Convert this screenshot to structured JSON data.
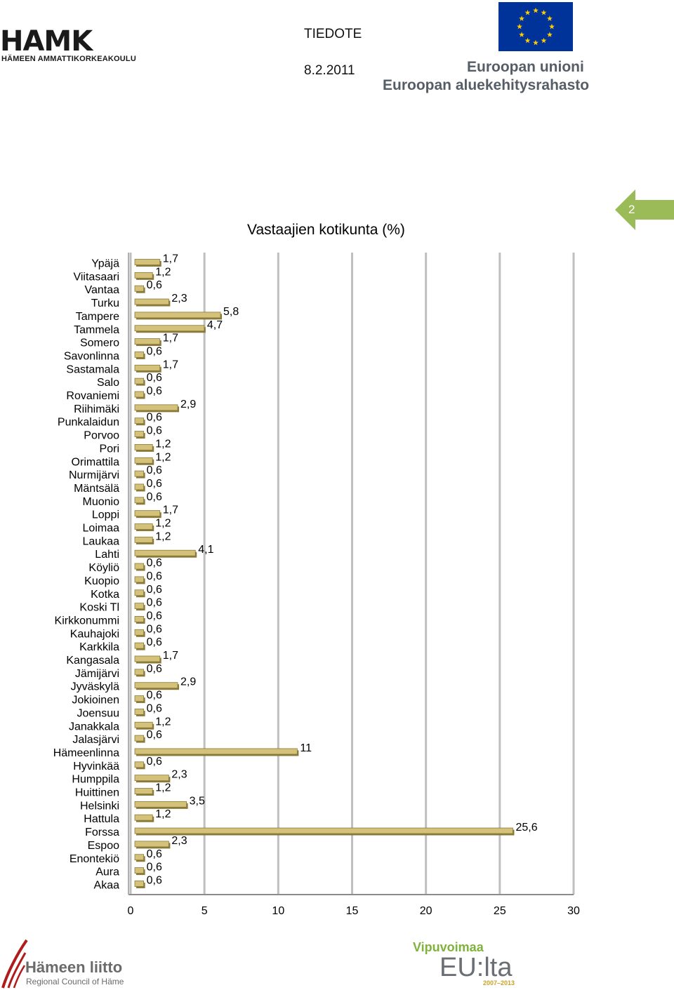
{
  "header": {
    "org_name": "HAMK",
    "org_subtitle": "HÄMEEN AMMATTIKORKEAKOULU",
    "doc_type": "TIEDOTE",
    "doc_date": "8.2.2011",
    "eu_line1": "Euroopan unioni",
    "eu_line2": "Euroopan aluekehitysrahasto",
    "page_number": "2"
  },
  "footer": {
    "liitto_name": "Hämeen liitto",
    "liitto_sub": "Regional Council of Häme",
    "vipu_line1": "Vipuvoimaa",
    "vipu_line2": "EU:lta",
    "vipu_line3": "2007–2013"
  },
  "colors": {
    "bar_fill": "#d4c17a",
    "bar_edge": "#8a7a3a",
    "gridline": "#bfbfbf",
    "page_arrow": "#9bbb59",
    "eu_blue": "#003399",
    "eu_star": "#ffcc00"
  },
  "chart_data": {
    "type": "bar",
    "orientation": "horizontal",
    "title": "Vastaajien kotikunta (%)",
    "xlabel": "",
    "ylabel": "",
    "xlim": [
      0,
      30
    ],
    "xticks": [
      "0",
      "5",
      "10",
      "15",
      "20",
      "25",
      "30"
    ],
    "grid": true,
    "categories": [
      "Ypäjä",
      "Viitasaari",
      "Vantaa",
      "Turku",
      "Tampere",
      "Tammela",
      "Somero",
      "Savonlinna",
      "Sastamala",
      "Salo",
      "Rovaniemi",
      "Riihimäki",
      "Punkalaidun",
      "Porvoo",
      "Pori",
      "Orimattila",
      "Nurmijärvi",
      "Mäntsälä",
      "Muonio",
      "Loppi",
      "Loimaa",
      "Laukaa",
      "Lahti",
      "Köyliö",
      "Kuopio",
      "Kotka",
      "Koski Tl",
      "Kirkkonummi",
      "Kauhajoki",
      "Karkkila",
      "Kangasala",
      "Jämijärvi",
      "Jyväskylä",
      "Jokioinen",
      "Joensuu",
      "Janakkala",
      "Jalasjärvi",
      "Hämeenlinna",
      "Hyvinkää",
      "Humppila",
      "Huittinen",
      "Helsinki",
      "Hattula",
      "Forssa",
      "Espoo",
      "Enontekiö",
      "Aura",
      "Akaa"
    ],
    "values": [
      1.7,
      1.2,
      0.6,
      2.3,
      5.8,
      4.7,
      1.7,
      0.6,
      1.7,
      0.6,
      0.6,
      2.9,
      0.6,
      0.6,
      1.2,
      1.2,
      0.6,
      0.6,
      0.6,
      1.7,
      1.2,
      1.2,
      4.1,
      0.6,
      0.6,
      0.6,
      0.6,
      0.6,
      0.6,
      0.6,
      1.7,
      0.6,
      2.9,
      0.6,
      0.6,
      1.2,
      0.6,
      11,
      0.6,
      2.3,
      1.2,
      3.5,
      1.2,
      25.6,
      2.3,
      0.6,
      0.6,
      0.6
    ],
    "value_labels": [
      "1,7",
      "1,2",
      "0,6",
      "2,3",
      "5,8",
      "4,7",
      "1,7",
      "0,6",
      "1,7",
      "0,6",
      "0,6",
      "2,9",
      "0,6",
      "0,6",
      "1,2",
      "1,2",
      "0,6",
      "0,6",
      "0,6",
      "1,7",
      "1,2",
      "1,2",
      "4,1",
      "0,6",
      "0,6",
      "0,6",
      "0,6",
      "0,6",
      "0,6",
      "0,6",
      "1,7",
      "0,6",
      "2,9",
      "0,6",
      "0,6",
      "1,2",
      "0,6",
      "11",
      "0,6",
      "2,3",
      "1,2",
      "3,5",
      "1,2",
      "25,6",
      "2,3",
      "0,6",
      "0,6",
      "0,6"
    ]
  }
}
